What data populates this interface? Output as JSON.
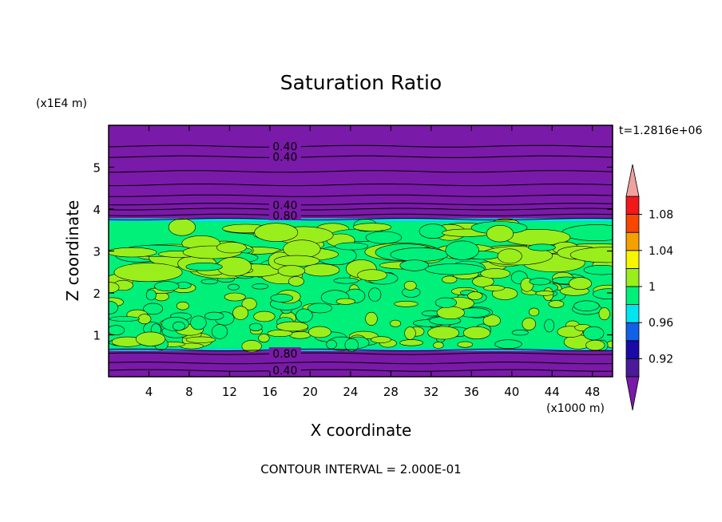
{
  "chart_data": {
    "type": "heatmap",
    "title": "Saturation Ratio",
    "xlabel": "X coordinate",
    "ylabel": "Z coordinate",
    "x_unit": "(x1000 m)",
    "y_unit": "(x1E4 m)",
    "time_label": "t=1.2816e+06",
    "footer": "CONTOUR INTERVAL = 2.000E-01",
    "xlim": [
      0,
      50
    ],
    "ylim": [
      0,
      6
    ],
    "x_ticks": [
      4,
      8,
      12,
      16,
      20,
      24,
      28,
      32,
      36,
      40,
      44,
      48
    ],
    "y_ticks": [
      1,
      2,
      3,
      4,
      5
    ],
    "contour_labels": [
      {
        "text": "0.40",
        "x": 17.5,
        "z": 5.5
      },
      {
        "text": "0.40",
        "x": 17.5,
        "z": 5.25
      },
      {
        "text": "0.40",
        "x": 17.5,
        "z": 4.1
      },
      {
        "text": "0.80",
        "x": 17.5,
        "z": 3.85
      },
      {
        "text": "0.80",
        "x": 17.5,
        "z": 0.55
      },
      {
        "text": "0.40",
        "x": 17.5,
        "z": 0.15
      }
    ],
    "colorbar": {
      "levels": [
        0.9,
        0.92,
        0.94,
        0.96,
        0.98,
        1.0,
        1.02,
        1.04,
        1.06,
        1.08,
        1.1
      ],
      "tick_labels": [
        "0.92",
        "0.96",
        "1",
        "1.04",
        "1.08"
      ],
      "colors": [
        "#4a1a99",
        "#1a0aa8",
        "#1060e8",
        "#00e5f0",
        "#00f07a",
        "#9aee1c",
        "#f6f600",
        "#f6a000",
        "#f64600",
        "#f01818"
      ],
      "under_color": "#7a1aa8",
      "over_color": "#f0a0a0"
    },
    "layers": [
      {
        "z_range": [
          0.0,
          0.62
        ],
        "value": 0.5,
        "description_color": "purple"
      },
      {
        "z_range": [
          0.62,
          0.68
        ],
        "value": 0.97,
        "description_color": "cyan"
      },
      {
        "z_range": [
          0.68,
          3.7
        ],
        "value": 1.0,
        "description_color": "green / yellow-green mottled"
      },
      {
        "z_range": [
          3.7,
          3.78
        ],
        "value": 0.97,
        "description_color": "cyan"
      },
      {
        "z_range": [
          3.78,
          6.0
        ],
        "value": 0.5,
        "description_color": "purple"
      }
    ]
  }
}
